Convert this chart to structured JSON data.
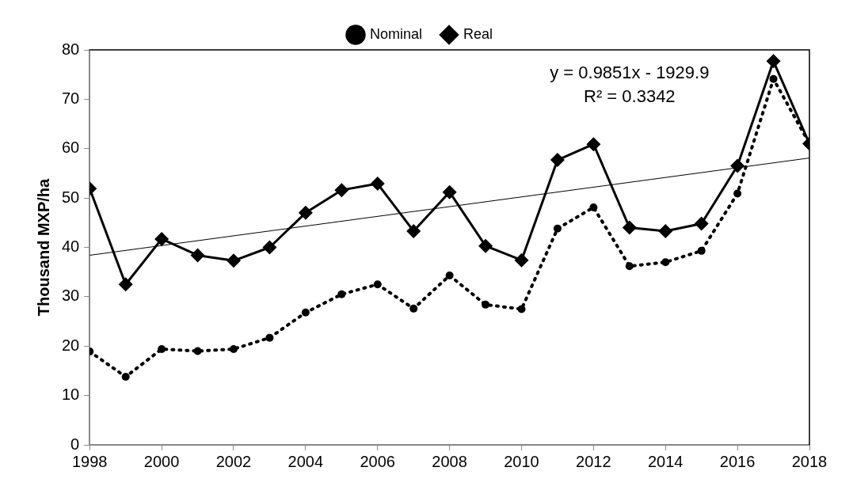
{
  "chart_data": {
    "type": "line",
    "ylabel": "Thousand MXP/ha",
    "x": [
      1998,
      1999,
      2000,
      2001,
      2002,
      2003,
      2004,
      2005,
      2006,
      2007,
      2008,
      2009,
      2010,
      2011,
      2012,
      2013,
      2014,
      2015,
      2016,
      2017,
      2018
    ],
    "xlim": [
      1998,
      2018
    ],
    "xticks": [
      1998,
      2000,
      2002,
      2004,
      2006,
      2008,
      2010,
      2012,
      2014,
      2016,
      2018
    ],
    "ylim": [
      0,
      80
    ],
    "yticks": [
      0,
      10,
      20,
      30,
      40,
      50,
      60,
      70,
      80
    ],
    "grid": false,
    "legend": "top",
    "series": [
      {
        "name": "Nominal",
        "color": "#000000",
        "marker": "circle",
        "line_style": "dotted",
        "values": [
          18.9,
          13.8,
          19.4,
          19.0,
          19.4,
          21.7,
          26.8,
          30.5,
          32.5,
          27.6,
          34.3,
          28.4,
          27.5,
          43.8,
          48.1,
          36.2,
          37.0,
          39.3,
          50.9,
          74.1,
          61.0
        ]
      },
      {
        "name": "Real",
        "color": "#000000",
        "marker": "diamond",
        "line_style": "solid",
        "values": [
          51.9,
          32.5,
          41.7,
          38.4,
          37.3,
          40.0,
          47.0,
          51.6,
          52.9,
          43.3,
          51.2,
          40.3,
          37.4,
          57.7,
          60.9,
          44.0,
          43.3,
          44.8,
          56.5,
          77.7,
          61.0
        ]
      },
      {
        "color": "#000000",
        "marker": "none",
        "line_style": "solid",
        "x": [
          1998,
          2018
        ],
        "values": [
          38.4,
          58.1
        ]
      }
    ],
    "annotations": [
      "y = 0.9851x - 1929.9",
      "R² = 0.3342"
    ]
  }
}
